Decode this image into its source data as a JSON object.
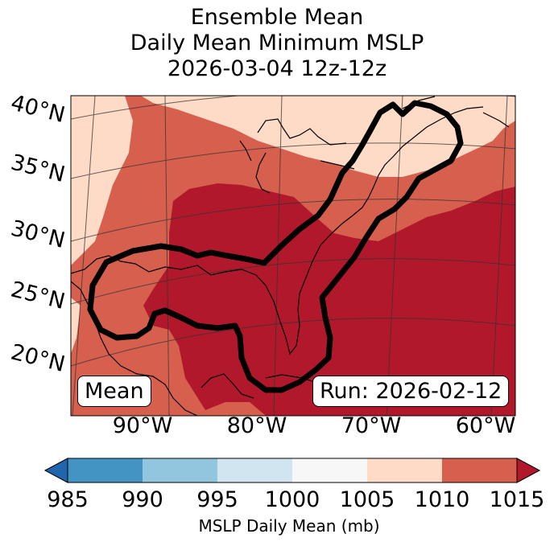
{
  "title": {
    "line1": "Ensemble Mean",
    "line2": "Daily Mean Minimum MSLP",
    "line3": "2026-03-04 12z-12z"
  },
  "latitude_labels": [
    "40°N",
    "35°N",
    "30°N",
    "25°N",
    "20°N"
  ],
  "longitude_labels": [
    "90°W",
    "80°W",
    "70°W",
    "60°W"
  ],
  "mean_box": "Mean",
  "run_box": "Run: 2026-02-12",
  "colorbar": {
    "ticks": [
      "985",
      "990",
      "995",
      "1000",
      "1005",
      "1010",
      "1015"
    ],
    "label": "MSLP Daily Mean (mb)",
    "colors": [
      "#2166ac",
      "#4393c3",
      "#92c5de",
      "#d1e5f0",
      "#f7f7f7",
      "#fddbc7",
      "#d6604d",
      "#b2182b"
    ]
  },
  "map": {
    "region": "Eastern United States, Gulf of Mexico, western Atlantic",
    "fill_levels": {
      "west_strip": "1005-1010",
      "northeast": "1005-1010",
      "middle_band": "1010-1015",
      "southeast_core": ">1015"
    },
    "contour_color": "#000000"
  }
}
